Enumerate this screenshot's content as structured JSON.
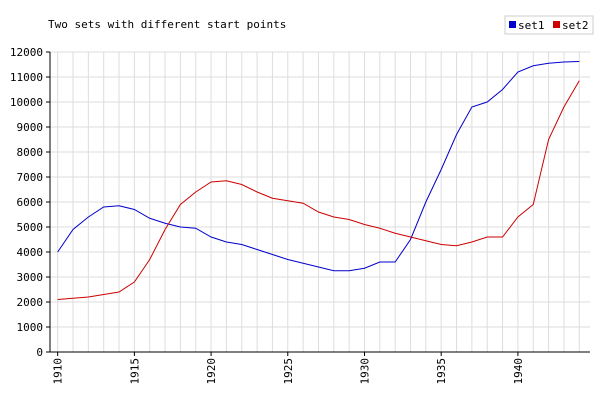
{
  "chart_data": {
    "type": "line",
    "title": "Two sets with different start points",
    "x": [
      1910,
      1911,
      1912,
      1913,
      1914,
      1915,
      1916,
      1917,
      1918,
      1919,
      1920,
      1921,
      1922,
      1923,
      1924,
      1925,
      1926,
      1927,
      1928,
      1929,
      1930,
      1931,
      1932,
      1933,
      1934,
      1935,
      1936,
      1937,
      1938,
      1939,
      1940,
      1941,
      1942,
      1943,
      1944
    ],
    "series": [
      {
        "name": "set1",
        "color": "#0000cc",
        "values": [
          4000,
          4900,
          5400,
          5800,
          5850,
          5700,
          5350,
          5150,
          5000,
          4950,
          4600,
          4400,
          4300,
          4100,
          3900,
          3700,
          3550,
          3400,
          3250,
          3250,
          3350,
          3600,
          3600,
          4500,
          6000,
          7300,
          8700,
          9800,
          10000,
          10500,
          11200,
          11450,
          11550,
          11600,
          11620
        ]
      },
      {
        "name": "set2",
        "color": "#cc0000",
        "values": [
          2100,
          2150,
          2200,
          2300,
          2400,
          2800,
          3700,
          4900,
          5900,
          6400,
          6800,
          6850,
          6700,
          6400,
          6150,
          6050,
          5950,
          5600,
          5400,
          5300,
          5100,
          4950,
          4750,
          4600,
          4450,
          4300,
          4250,
          4400,
          4600,
          4600,
          5400,
          5900,
          8500,
          9800,
          10850
        ]
      }
    ],
    "xlim": [
      1909.5,
      1944.7
    ],
    "xticks": [
      1910,
      1915,
      1920,
      1925,
      1930,
      1935,
      1940
    ],
    "ylim": [
      0,
      12000
    ],
    "yticks": [
      0,
      1000,
      2000,
      3000,
      4000,
      5000,
      6000,
      7000,
      8000,
      9000,
      10000,
      11000,
      12000
    ],
    "grid": true,
    "legend": "top-right"
  }
}
